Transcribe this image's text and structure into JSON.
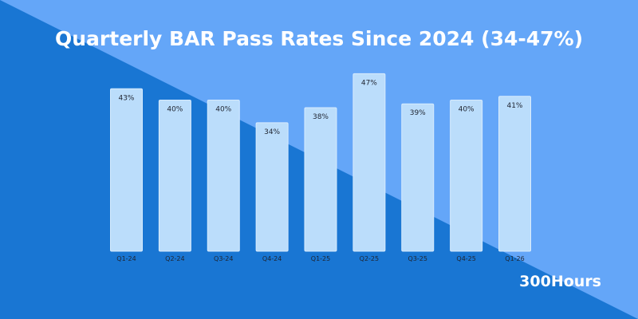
{
  "page": {
    "title": "Quarterly BAR Pass Rates Since 2024 (34-47%)",
    "brand": "300Hours",
    "colors": {
      "background_dark": "#1976d3",
      "background_light": "#64a6f8",
      "bar_fill": "#bbddfb",
      "text_light": "#ffffff",
      "text_dark": "#1f2430"
    }
  },
  "chart_data": {
    "type": "bar",
    "title": "Quarterly BAR Pass Rates Since 2024 (34-47%)",
    "xlabel": "",
    "ylabel": "",
    "categories": [
      "Q1-24",
      "Q2-24",
      "Q3-24",
      "Q4-24",
      "Q1-25",
      "Q2-25",
      "Q3-25",
      "Q4-25",
      "Q1-26"
    ],
    "values": [
      43,
      40,
      40,
      34,
      38,
      47,
      39,
      40,
      41
    ],
    "value_labels": [
      "43%",
      "40%",
      "40%",
      "34%",
      "38%",
      "47%",
      "39%",
      "40%",
      "41%"
    ],
    "ylim": [
      0,
      49.6
    ],
    "grid": false,
    "legend": "none"
  }
}
